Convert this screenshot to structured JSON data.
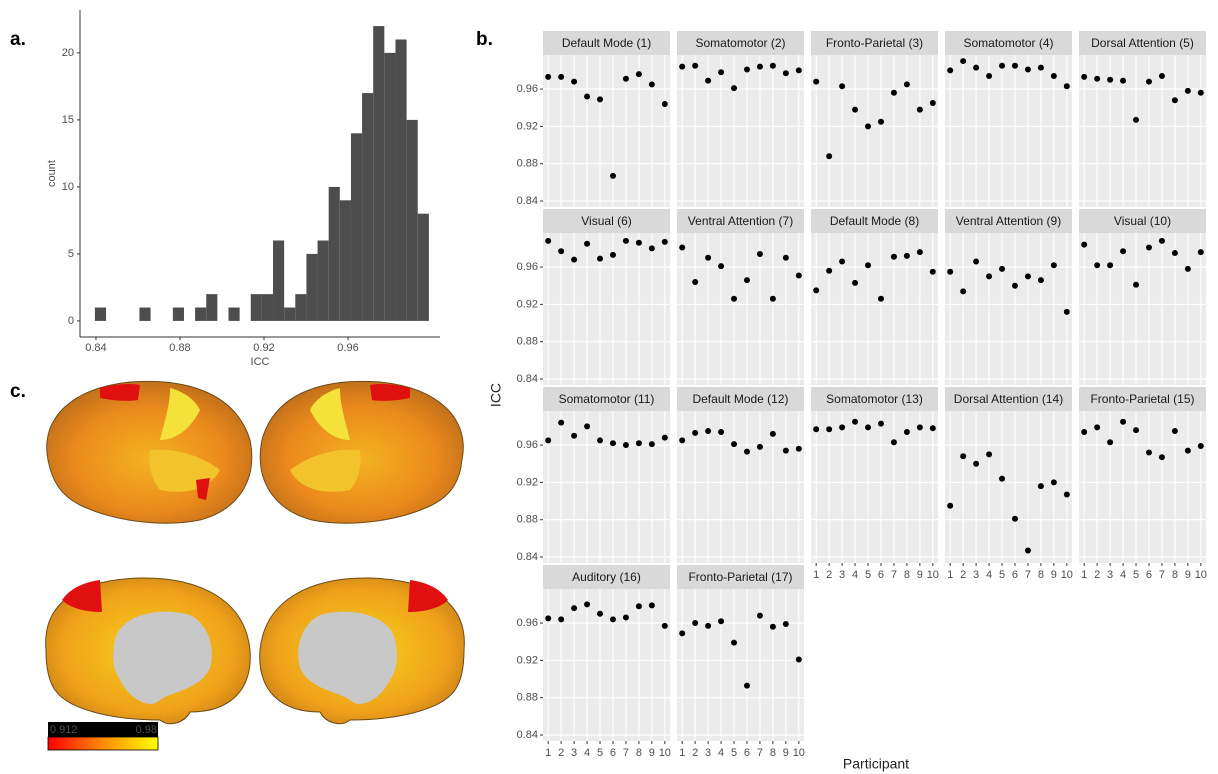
{
  "chart_data": [
    {
      "type": "histogram",
      "panel_label": "a.",
      "xlabel": "ICC",
      "ylabel": "count",
      "color": "#4d4d4d",
      "bins": [
        0.8395,
        0.8448,
        0.8501,
        0.8554,
        0.8607,
        0.866,
        0.8713,
        0.8766,
        0.8819,
        0.8872,
        0.8925,
        0.8978,
        0.9031,
        0.9084,
        0.9137,
        0.919,
        0.9243,
        0.9296,
        0.9349,
        0.9402,
        0.9455,
        0.9508,
        0.9561,
        0.9614,
        0.9667,
        0.972,
        0.9773,
        0.9826,
        0.9879,
        0.9932,
        0.9985
      ],
      "counts": [
        1,
        0,
        0,
        0,
        1,
        0,
        0,
        1,
        0,
        1,
        2,
        0,
        1,
        0,
        2,
        2,
        6,
        1,
        2,
        5,
        6,
        10,
        9,
        14,
        17,
        22,
        20,
        21,
        15,
        8
      ],
      "xlim": [
        0.8324,
        1.0038
      ],
      "xticks": [
        0.84,
        0.88,
        0.92,
        0.96
      ],
      "ylim": [
        -1.2,
        23.2
      ],
      "yticks": [
        0,
        5,
        10,
        15,
        20
      ]
    },
    {
      "type": "facet_scatter",
      "panel_label": "b.",
      "xlabel": "Participant",
      "ylabel": "ICC",
      "color": "#000000",
      "grid": true,
      "x": [
        1,
        2,
        3,
        4,
        5,
        6,
        7,
        8,
        9,
        10
      ],
      "xlim": [
        0.6,
        10.4
      ],
      "xticks": [
        1,
        2,
        3,
        4,
        5,
        6,
        7,
        8,
        9,
        10
      ],
      "ylim": [
        0.8336,
        0.9965
      ],
      "yticks": [
        0.84,
        0.88,
        0.92,
        0.96
      ],
      "panels": [
        {
          "title": "Default Mode (1)",
          "values": [
            0.973,
            0.973,
            0.968,
            0.952,
            0.949,
            0.867,
            0.971,
            0.976,
            0.965,
            0.944
          ]
        },
        {
          "title": "Somatomotor (2)",
          "values": [
            0.984,
            0.985,
            0.969,
            0.978,
            0.961,
            0.981,
            0.984,
            0.985,
            0.977,
            0.98
          ]
        },
        {
          "title": "Fronto-Parietal (3)",
          "values": [
            0.968,
            0.888,
            0.963,
            0.938,
            0.92,
            0.925,
            0.956,
            0.965,
            0.938,
            0.945
          ]
        },
        {
          "title": "Somatomotor (4)",
          "values": [
            0.98,
            0.99,
            0.983,
            0.974,
            0.985,
            0.985,
            0.981,
            0.983,
            0.974,
            0.963
          ]
        },
        {
          "title": "Dorsal Attention (5)",
          "values": [
            0.973,
            0.971,
            0.97,
            0.969,
            0.927,
            0.968,
            0.974,
            0.948,
            0.958,
            0.956
          ]
        },
        {
          "title": "Visual (6)",
          "values": [
            0.988,
            0.977,
            0.968,
            0.985,
            0.969,
            0.973,
            0.988,
            0.986,
            0.98,
            0.987
          ]
        },
        {
          "title": "Ventral Attention (7)",
          "values": [
            0.981,
            0.944,
            0.97,
            0.961,
            0.926,
            0.946,
            0.974,
            0.926,
            0.97,
            0.951
          ]
        },
        {
          "title": "Default Mode (8)",
          "values": [
            0.935,
            0.956,
            0.966,
            0.943,
            0.962,
            0.926,
            0.971,
            0.972,
            0.976,
            0.955
          ]
        },
        {
          "title": "Ventral Attention (9)",
          "values": [
            0.955,
            0.934,
            0.966,
            0.95,
            0.958,
            0.94,
            0.95,
            0.946,
            0.962,
            0.912
          ]
        },
        {
          "title": "Visual (10)",
          "values": [
            0.984,
            0.962,
            0.962,
            0.977,
            0.941,
            0.981,
            0.988,
            0.975,
            0.958,
            0.976
          ]
        },
        {
          "title": "Somatomotor (11)",
          "values": [
            0.965,
            0.984,
            0.97,
            0.98,
            0.965,
            0.962,
            0.96,
            0.962,
            0.961,
            0.968
          ]
        },
        {
          "title": "Default Mode (12)",
          "values": [
            0.965,
            0.973,
            0.975,
            0.974,
            0.961,
            0.953,
            0.958,
            0.972,
            0.954,
            0.956
          ]
        },
        {
          "title": "Somatomotor (13)",
          "values": [
            0.977,
            0.977,
            0.979,
            0.985,
            0.979,
            0.983,
            0.963,
            0.974,
            0.979,
            0.978
          ]
        },
        {
          "title": "Dorsal Attention (14)",
          "values": [
            0.895,
            0.948,
            0.94,
            0.95,
            0.924,
            0.881,
            0.847,
            0.916,
            0.92,
            0.907
          ]
        },
        {
          "title": "Fronto-Parietal (15)",
          "values": [
            0.974,
            0.979,
            0.963,
            0.985,
            0.976,
            0.952,
            0.947,
            0.975,
            0.954,
            0.959
          ]
        },
        {
          "title": "Auditory (16)",
          "values": [
            0.965,
            0.964,
            0.976,
            0.98,
            0.97,
            0.964,
            0.966,
            0.978,
            0.979,
            0.957
          ]
        },
        {
          "title": "Fronto-Parietal (17)",
          "values": [
            0.949,
            0.96,
            0.957,
            0.962,
            0.939,
            0.893,
            0.968,
            0.956,
            0.959,
            0.921
          ]
        }
      ]
    },
    {
      "type": "colorbar",
      "panel_label": "c.",
      "clim": [
        0.912,
        0.98
      ],
      "colors": [
        "#ff0000",
        "#ff8c00",
        "#ffff00"
      ]
    }
  ]
}
